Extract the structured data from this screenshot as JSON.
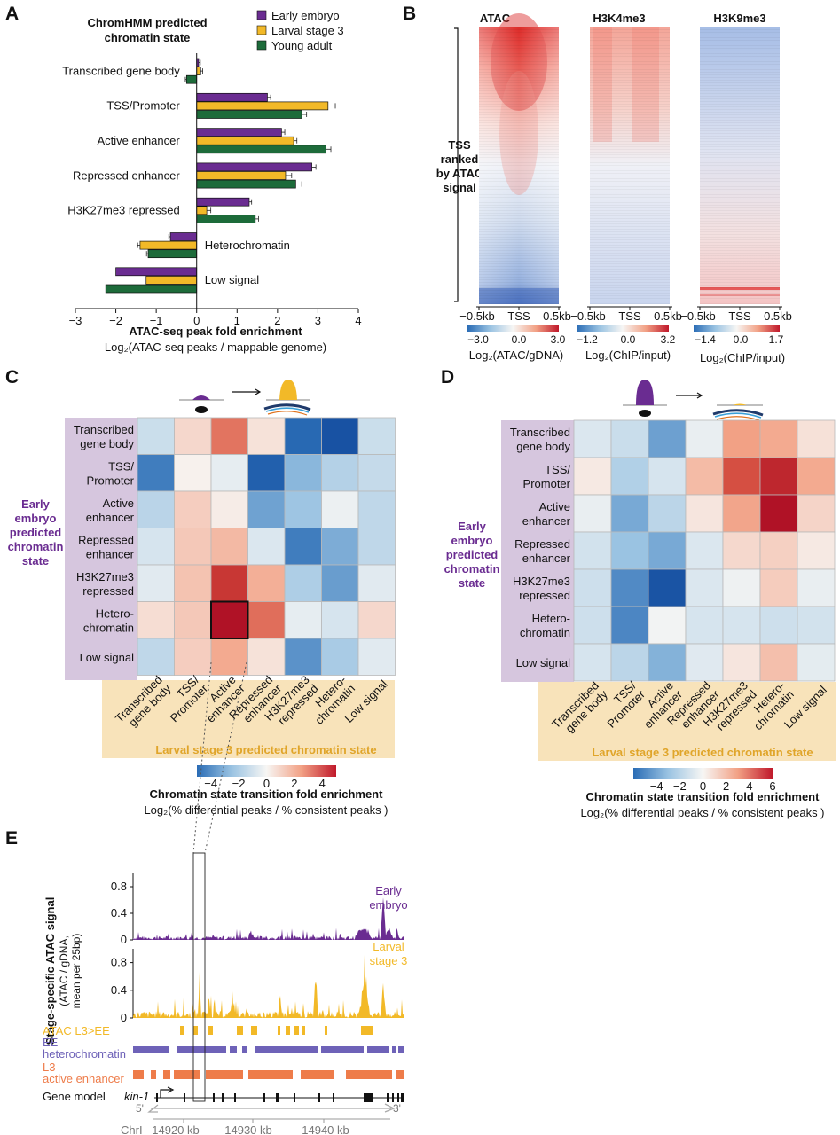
{
  "panels": [
    "A",
    "B",
    "C",
    "D",
    "E"
  ],
  "colors": {
    "early_embryo": "#6a2c91",
    "larval_stage3": "#f2b928",
    "young_adult": "#1d6b3a",
    "heatmap_label_bg": "#d6c6de",
    "heatmap_xlabel_bg": "#f8e3ba",
    "ee_track": "#6e62b8",
    "l3_track": "#ee7c4a",
    "row_label_purple": "#6a2c91",
    "col_label_orange": "#e0a52a"
  },
  "panelA": {
    "title_line1": "ChromHMM predicted",
    "title_line2": "chromatin state",
    "xlabel": "ATAC-seq peak fold enrichment",
    "xsublabel": "Log₂(ATAC-seq peaks / mappable genome)"
  },
  "panelB": {
    "columns": [
      {
        "title": "ATAC",
        "cb_ticks": [
          "−3.0",
          "0.0",
          "3.0"
        ],
        "cb_label": "Log₂(ATAC/gDNA)"
      },
      {
        "title": "H3K4me3",
        "cb_ticks": [
          "−1.2",
          "0.0",
          "3.2"
        ],
        "cb_label": "Log₂(ChIP/input)"
      },
      {
        "title": "H3K9me3",
        "cb_ticks": [
          "−1.4",
          "0.0",
          "1.7"
        ],
        "cb_label": "Log₂(ChIP/input)"
      }
    ],
    "xticks": [
      "−0.5kb",
      "TSS",
      "0.5kb"
    ],
    "rank_label": [
      "TSS",
      "ranked",
      "by ATAC",
      "signal"
    ]
  },
  "heatmaps": {
    "row_title": [
      "Early",
      "embryo",
      "predicted",
      "chromatin",
      "state"
    ],
    "col_title": "Larval stage 3 predicted chromatin state",
    "cb_title": "Chromatin state transition fold enrichment",
    "cb_sub": "Log₂(% differential peaks /  % consistent peaks )",
    "row_labels": [
      [
        "Transcribed",
        "gene body"
      ],
      [
        "TSS/",
        "Promoter"
      ],
      [
        "Active",
        "enhancer"
      ],
      [
        "Repressed",
        "enhancer"
      ],
      [
        "H3K27me3",
        "repressed"
      ],
      [
        "Hetero-",
        "chromatin"
      ],
      [
        "Low signal"
      ]
    ],
    "col_labels": [
      [
        "Transcribed",
        "gene body"
      ],
      [
        "TSS/",
        "Promoter"
      ],
      [
        "Active",
        "enhancer"
      ],
      [
        "Repressed",
        "enhancer"
      ],
      [
        "H3K27me3",
        "repressed"
      ],
      [
        "Hetero-",
        "chromatin"
      ],
      [
        "Low signal"
      ]
    ],
    "C_cb_ticks": [
      "−4",
      "−2",
      "0",
      "2",
      "4"
    ],
    "D_cb_ticks": [
      "−4",
      "−2",
      "0",
      "2",
      "4",
      "6"
    ]
  },
  "panelE": {
    "ylabel_main": "Stage-specific ATAC signal",
    "ylabel_sub1": "(ATAC / gDNA,",
    "ylabel_sub2": "mean per 25bp)",
    "yticks": [
      "0.8",
      "0.4",
      "0"
    ],
    "track1_label": [
      "Early",
      "embryo"
    ],
    "track2_label": [
      "Larval",
      "stage 3"
    ],
    "row_labels": {
      "atac": "ATAC L3>EE",
      "ee1": "EE",
      "ee2": "heterochromatin",
      "l31": "L3",
      "l32": "active enhancer",
      "gene_model": "Gene model"
    },
    "gene": "kin-1",
    "five": "5'",
    "three": "3'",
    "coord_labels": [
      "ChrI",
      "14920 kb",
      "14930 kb",
      "14940 kb"
    ]
  },
  "chart_data": [
    {
      "type": "bar",
      "orientation": "horizontal",
      "panel": "A",
      "title": "ChromHMM predicted chromatin state",
      "xlabel": "ATAC-seq peak fold enrichment",
      "xlim": [
        -3,
        4
      ],
      "xticks": [
        "−3",
        "−2",
        "−1",
        "0",
        "1",
        "2",
        "3",
        "4"
      ],
      "categories": [
        "Transcribed gene body",
        "TSS/Promoter",
        "Active enhancer",
        "Repressed enhancer",
        "H3K27me3 repressed",
        "Heterochromatin",
        "Low signal"
      ],
      "series": [
        {
          "name": "Early embryo",
          "color": "#6a2c91",
          "values": [
            0.05,
            1.75,
            2.1,
            2.85,
            1.3,
            -0.65,
            -2.0
          ],
          "errors": [
            0.04,
            0.08,
            0.08,
            0.1,
            0.06,
            0.04,
            0.0
          ]
        },
        {
          "name": "Larval stage 3",
          "color": "#f2b928",
          "values": [
            0.1,
            3.25,
            2.4,
            2.2,
            0.25,
            -1.4,
            -1.25
          ],
          "errors": [
            0.05,
            0.18,
            0.08,
            0.15,
            0.1,
            0.06,
            0.0
          ]
        },
        {
          "name": "Young adult",
          "color": "#1d6b3a",
          "values": [
            -0.25,
            2.6,
            3.2,
            2.45,
            1.45,
            -1.2,
            -2.25
          ],
          "errors": [
            0.03,
            0.12,
            0.12,
            0.15,
            0.08,
            0.04,
            0.0
          ]
        }
      ]
    },
    {
      "type": "heatmap",
      "panel": "C",
      "rows": [
        "Transcribed gene body",
        "TSS/Promoter",
        "Active enhancer",
        "Repressed enhancer",
        "H3K27me3 repressed",
        "Heterochromatin",
        "Low signal"
      ],
      "cols": [
        "Transcribed gene body",
        "TSS/Promoter",
        "Active enhancer",
        "Repressed enhancer",
        "H3K27me3 repressed",
        "Heterochromatin",
        "Low signal"
      ],
      "vmin": -5,
      "vmax": 5,
      "values": [
        [
          -0.8,
          0.6,
          2.5,
          0.4,
          -3.5,
          -4.8,
          -0.8
        ],
        [
          -3.0,
          0.1,
          -0.3,
          -4.0,
          -1.9,
          -1.2,
          -0.9
        ],
        [
          -1.1,
          0.8,
          0.2,
          -2.3,
          -1.6,
          -0.2,
          -1.0
        ],
        [
          -0.6,
          0.9,
          1.2,
          -0.5,
          -3.0,
          -2.1,
          -1.0
        ],
        [
          -0.4,
          1.0,
          3.8,
          1.4,
          -1.3,
          -2.4,
          -0.4
        ],
        [
          0.5,
          0.9,
          5.0,
          2.6,
          -0.3,
          -0.6,
          0.6
        ],
        [
          -1.0,
          0.8,
          1.5,
          0.4,
          -2.6,
          -1.4,
          -0.4
        ]
      ],
      "highlight": {
        "row": 5,
        "col": 2
      }
    },
    {
      "type": "heatmap",
      "panel": "D",
      "rows": [
        "Transcribed gene body",
        "TSS/Promoter",
        "Active enhancer",
        "Repressed enhancer",
        "H3K27me3 repressed",
        "Heterochromatin",
        "Low signal"
      ],
      "cols": [
        "Transcribed gene body",
        "TSS/Promoter",
        "Active enhancer",
        "Repressed enhancer",
        "H3K27me3 repressed",
        "Heterochromatin",
        "Low signal"
      ],
      "vmin": -6,
      "vmax": 6,
      "values": [
        [
          -0.6,
          -1.0,
          -2.8,
          -0.3,
          2.0,
          1.8,
          0.5
        ],
        [
          0.3,
          -1.5,
          -0.7,
          1.4,
          3.8,
          5.2,
          1.8
        ],
        [
          -0.3,
          -2.6,
          -1.3,
          0.4,
          1.9,
          6.0,
          0.8
        ],
        [
          -0.8,
          -2.0,
          -2.6,
          -0.6,
          0.7,
          0.9,
          0.3
        ],
        [
          -0.9,
          -3.3,
          -5.6,
          -0.6,
          -0.2,
          1.0,
          -0.3
        ],
        [
          -0.9,
          -3.4,
          -0.1,
          -0.7,
          -0.7,
          -0.9,
          -0.8
        ],
        [
          -0.7,
          -1.3,
          -2.4,
          -0.5,
          0.4,
          1.3,
          -0.4
        ]
      ]
    }
  ]
}
